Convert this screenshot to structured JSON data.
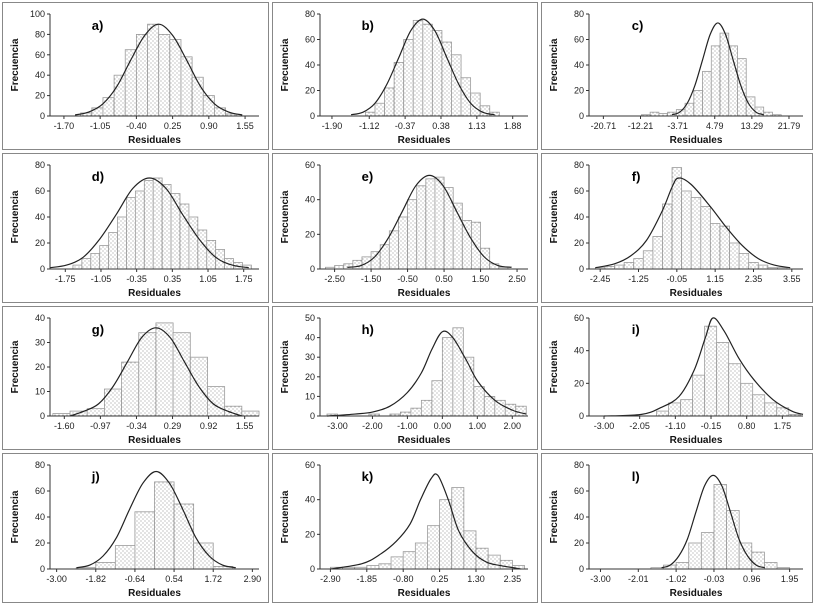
{
  "chart_data": [
    {
      "type": "histogram",
      "label": "a)",
      "xlabel": "Residuales",
      "ylabel": "Frecuencia",
      "bins": [
        -1.4,
        -1.2,
        -1,
        -0.8,
        -0.6,
        -0.4,
        -0.2,
        0,
        0.2,
        0.4,
        0.6,
        0.8,
        1,
        1.2,
        1.4
      ],
      "values": [
        3,
        8,
        18,
        40,
        65,
        80,
        90,
        80,
        75,
        58,
        38,
        20,
        8,
        2
      ],
      "curve": {
        "x": [
          -1.5,
          -1.25,
          -1,
          -0.75,
          -0.5,
          -0.25,
          0,
          0.25,
          0.5,
          0.75,
          1,
          1.25,
          1.5
        ],
        "values": [
          1,
          4,
          12,
          29,
          55,
          79,
          90,
          79,
          55,
          29,
          12,
          4,
          1
        ]
      },
      "xlim": [
        -1.95,
        1.8
      ],
      "ylim": [
        0,
        100
      ],
      "xticks": [
        {
          "value": -1.7,
          "label": "-1.70"
        },
        -1.05,
        {
          "value": -0.4,
          "label": "-0.40"
        },
        0.25,
        {
          "value": 0.9,
          "label": "0.90"
        },
        1.55
      ],
      "yticks": [
        0,
        20,
        40,
        60,
        80,
        100
      ]
    },
    {
      "type": "histogram",
      "label": "b)",
      "xlabel": "Residuales",
      "ylabel": "Frecuencia",
      "bins": [
        -1.2,
        -1,
        -0.8,
        -0.6,
        -0.4,
        -0.2,
        0,
        0.2,
        0.4,
        0.6,
        0.8,
        1,
        1.2,
        1.4,
        1.6
      ],
      "values": [
        3,
        10,
        22,
        42,
        60,
        75,
        72,
        67,
        58,
        48,
        30,
        18,
        8,
        3
      ],
      "curve": {
        "x": [
          -1.5,
          -1.25,
          -1,
          -0.75,
          -0.5,
          -0.25,
          0,
          0.25,
          0.5,
          0.75,
          1,
          1.25,
          1.5
        ],
        "values": [
          1,
          3,
          10,
          25,
          46,
          67,
          76,
          67,
          46,
          25,
          10,
          3,
          1
        ]
      },
      "xlim": [
        -2.15,
        2.2
      ],
      "ylim": [
        0,
        80
      ],
      "xticks": [
        {
          "value": -1.9,
          "label": "-1.90"
        },
        -1.12,
        -0.37,
        0.38,
        1.13,
        1.88
      ],
      "yticks": [
        0,
        20,
        40,
        60,
        80
      ]
    },
    {
      "type": "histogram",
      "label": "c)",
      "xlabel": "Residuales",
      "ylabel": "Frecuencia",
      "bins": [
        -12,
        -10,
        -8,
        -6,
        -4,
        -2,
        0,
        2,
        4,
        6,
        8,
        10,
        12,
        14,
        16,
        18,
        20
      ],
      "values": [
        1,
        3,
        2,
        3,
        5,
        10,
        20,
        35,
        55,
        65,
        55,
        45,
        15,
        7,
        3,
        1
      ],
      "curve": {
        "x": [
          -5,
          -3.25,
          -1.5,
          0.25,
          2,
          3.75,
          5.5,
          7.25,
          9,
          10.75,
          12.5,
          14.25,
          16
        ],
        "values": [
          1,
          3,
          10,
          24,
          44,
          64,
          73,
          64,
          44,
          24,
          10,
          3,
          1
        ]
      },
      "xlim": [
        -24,
        25
      ],
      "ylim": [
        0,
        80
      ],
      "xticks": [
        -20.71,
        -12.21,
        -3.71,
        4.79,
        13.29,
        21.79
      ],
      "yticks": [
        0,
        20,
        40,
        60,
        80
      ]
    },
    {
      "type": "histogram",
      "label": "d)",
      "xlabel": "Residuales",
      "ylabel": "Frecuencia",
      "bins": [
        -1.6,
        -1.425,
        -1.25,
        -1.075,
        -0.9,
        -0.725,
        -0.55,
        -0.375,
        -0.2,
        -0.025,
        0.15,
        0.325,
        0.5,
        0.675,
        0.85,
        1.025,
        1.2,
        1.375,
        1.55,
        1.725,
        1.9
      ],
      "values": [
        3,
        8,
        12,
        18,
        28,
        40,
        55,
        60,
        68,
        70,
        65,
        58,
        50,
        40,
        30,
        22,
        15,
        8,
        5,
        3
      ],
      "curve": {
        "x": [
          -2.05,
          -1.725,
          -1.4,
          -1.075,
          -0.75,
          -0.425,
          -0.1,
          0.225,
          0.55,
          0.875,
          1.2,
          1.525,
          1.85
        ],
        "values": [
          1,
          3,
          9,
          23,
          42,
          62,
          70,
          62,
          42,
          23,
          9,
          3,
          1
        ]
      },
      "xlim": [
        -2.05,
        2.05
      ],
      "ylim": [
        0,
        80
      ],
      "xticks": [
        -1.75,
        -1.05,
        -0.35,
        0.35,
        1.05,
        1.75
      ],
      "yticks": [
        0,
        20,
        40,
        60,
        80
      ]
    },
    {
      "type": "histogram",
      "label": "e)",
      "xlabel": "Residuales",
      "ylabel": "Frecuencia",
      "bins": [
        -2.75,
        -2.5,
        -2.25,
        -2,
        -1.75,
        -1.5,
        -1.25,
        -1,
        -0.75,
        -0.5,
        -0.25,
        0,
        0.25,
        0.5,
        0.75,
        1,
        1.25,
        1.5,
        1.75,
        2,
        2.25
      ],
      "values": [
        1,
        2,
        3,
        5,
        7,
        10,
        14,
        22,
        30,
        40,
        48,
        52,
        53,
        47,
        38,
        28,
        27,
        12,
        3,
        1
      ],
      "curve": {
        "x": [
          -2.15,
          -1.775,
          -1.4,
          -1.025,
          -0.65,
          -0.275,
          0.1,
          0.475,
          0.85,
          1.225,
          1.6,
          1.975,
          2.35
        ],
        "values": [
          1,
          2,
          7,
          18,
          33,
          48,
          54,
          48,
          33,
          18,
          7,
          2,
          1
        ]
      },
      "xlim": [
        -2.9,
        2.8
      ],
      "ylim": [
        0,
        60
      ],
      "xticks": [
        {
          "value": -2.5,
          "label": "-2.50"
        },
        {
          "value": -1.5,
          "label": "-1.50"
        },
        {
          "value": -0.5,
          "label": "-0.50"
        },
        {
          "value": 0.5,
          "label": "0.50"
        },
        {
          "value": 1.5,
          "label": "1.50"
        },
        {
          "value": 2.5,
          "label": "2.50"
        }
      ],
      "yticks": [
        0,
        20,
        40,
        60
      ]
    },
    {
      "type": "histogram",
      "label": "f)",
      "xlabel": "Residuales",
      "ylabel": "Frecuencia",
      "bins": [
        -2.6,
        -2.3,
        -2,
        -1.7,
        -1.4,
        -1.1,
        -0.8,
        -0.5,
        -0.2,
        0.1,
        0.4,
        0.7,
        1,
        1.3,
        1.6,
        1.9,
        2.2,
        2.5,
        2.8,
        3.1,
        3.4
      ],
      "values": [
        1,
        2,
        3,
        5,
        8,
        14,
        25,
        50,
        78,
        60,
        55,
        48,
        35,
        33,
        20,
        12,
        5,
        3,
        1,
        1
      ],
      "curve": {
        "x": [
          -2.6,
          -2,
          -1.5,
          -1,
          -0.5,
          -0.2,
          0,
          0.4,
          1,
          1.5,
          2,
          2.5,
          3,
          3.5
        ],
        "values": [
          1,
          4,
          10,
          22,
          45,
          63,
          70,
          65,
          48,
          32,
          18,
          8,
          3,
          1
        ]
      },
      "xlim": [
        -2.8,
        3.9
      ],
      "ylim": [
        0,
        80
      ],
      "xticks": [
        -2.45,
        -1.25,
        -0.05,
        1.15,
        2.35,
        3.55
      ],
      "yticks": [
        0,
        20,
        40,
        60,
        80
      ]
    },
    {
      "type": "histogram",
      "label": "g)",
      "xlabel": "Residuales",
      "ylabel": "Frecuencia",
      "bins": [
        -1.8,
        -1.5,
        -1.2,
        -0.9,
        -0.6,
        -0.3,
        0,
        0.3,
        0.6,
        0.9,
        1.2,
        1.5,
        1.8
      ],
      "values": [
        1,
        2,
        3,
        11,
        22,
        34,
        38,
        34,
        24,
        12,
        4,
        2
      ],
      "curve": {
        "x": [
          -1.5,
          -1.25,
          -1,
          -0.75,
          -0.5,
          -0.25,
          0,
          0.25,
          0.5,
          0.75,
          1,
          1.25,
          1.5
        ],
        "values": [
          0,
          2,
          5,
          12,
          22,
          32,
          36,
          32,
          22,
          12,
          5,
          2,
          0
        ]
      },
      "xlim": [
        -1.85,
        1.8
      ],
      "ylim": [
        0,
        40
      ],
      "xticks": [
        {
          "value": -1.6,
          "label": "-1.60"
        },
        -0.97,
        -0.34,
        0.29,
        0.92,
        1.55
      ],
      "yticks": [
        0,
        10,
        20,
        30,
        40
      ]
    },
    {
      "type": "histogram",
      "label": "h)",
      "xlabel": "Residuales",
      "ylabel": "Frecuencia",
      "bins": [
        -3.3,
        -3,
        -2.7,
        -2.4,
        -2.1,
        -1.8,
        -1.5,
        -1.2,
        -0.9,
        -0.6,
        -0.3,
        0,
        0.3,
        0.6,
        0.9,
        1.2,
        1.5,
        1.8,
        2.1,
        2.4
      ],
      "values": [
        1,
        0,
        0,
        0,
        1,
        0,
        1,
        2,
        4,
        8,
        18,
        40,
        45,
        30,
        15,
        10,
        8,
        6,
        5
      ],
      "curve": {
        "x": [
          -3.3,
          -2.5,
          -2,
          -1.5,
          -1,
          -0.6,
          -0.3,
          0,
          0.3,
          0.7,
          1,
          1.5,
          2,
          2.4
        ],
        "values": [
          0,
          1,
          2,
          5,
          12,
          22,
          34,
          43,
          40,
          28,
          18,
          8,
          3,
          1
        ]
      },
      "xlim": [
        -3.5,
        2.45
      ],
      "ylim": [
        0,
        50
      ],
      "xticks": [
        {
          "value": -3,
          "label": "-3.00"
        },
        {
          "value": -2,
          "label": "-2.00"
        },
        {
          "value": -1,
          "label": "-1.00"
        },
        {
          "value": 0,
          "label": "0.00"
        },
        {
          "value": 1,
          "label": "1.00"
        },
        {
          "value": 2,
          "label": "2.00"
        }
      ],
      "yticks": [
        0,
        10,
        20,
        30,
        40,
        50
      ]
    },
    {
      "type": "histogram",
      "label": "i)",
      "xlabel": "Residuales",
      "ylabel": "Frecuencia",
      "bins": [
        -1.6,
        -1.28,
        -0.96,
        -0.64,
        -0.32,
        0,
        0.32,
        0.64,
        0.96,
        1.28,
        1.6,
        1.92,
        2.24
      ],
      "values": [
        3,
        8,
        10,
        25,
        55,
        45,
        32,
        20,
        13,
        8,
        5,
        1
      ],
      "curve": {
        "x": [
          -3,
          -2,
          -1.5,
          -1,
          -0.6,
          -0.3,
          -0.1,
          0.2,
          0.6,
          1,
          1.5,
          2,
          2.3
        ],
        "values": [
          0,
          1,
          5,
          12,
          28,
          48,
          60,
          52,
          35,
          22,
          10,
          3,
          1
        ]
      },
      "xlim": [
        -3.4,
        2.3
      ],
      "ylim": [
        0,
        60
      ],
      "xticks": [
        {
          "value": -3,
          "label": "-3.00"
        },
        -2.05,
        {
          "value": -1.1,
          "label": "-1.10"
        },
        -0.15,
        {
          "value": 0.8,
          "label": "0.80"
        },
        1.75
      ],
      "yticks": [
        0,
        20,
        40,
        60
      ]
    },
    {
      "type": "histogram",
      "label": "j)",
      "xlabel": "Residuales",
      "ylabel": "Frecuencia",
      "bins": [
        -2.41,
        -1.82,
        -1.23,
        -0.64,
        -0.05,
        0.54,
        1.13,
        1.72,
        2.31
      ],
      "values": [
        1,
        5,
        18,
        44,
        67,
        50,
        20,
        2
      ],
      "curve": {
        "x": [
          -2.4,
          -2,
          -1.6,
          -1.2,
          -0.8,
          -0.4,
          0,
          0.4,
          0.8,
          1.2,
          1.6,
          2,
          2.4
        ],
        "values": [
          1,
          3,
          10,
          24,
          46,
          66,
          75,
          66,
          46,
          24,
          10,
          3,
          1
        ]
      },
      "xlim": [
        -3.2,
        3.1
      ],
      "ylim": [
        0,
        80
      ],
      "xticks": [
        {
          "value": -3,
          "label": "-3.00"
        },
        -1.82,
        -0.64,
        0.54,
        1.72,
        {
          "value": 2.9,
          "label": "2.90"
        }
      ],
      "yticks": [
        0,
        20,
        40,
        60,
        80
      ]
    },
    {
      "type": "histogram",
      "label": "k)",
      "xlabel": "Residuales",
      "ylabel": "Frecuencia",
      "bins": [
        -2.9,
        -2.55,
        -2.2,
        -1.85,
        -1.5,
        -1.15,
        -0.8,
        -0.45,
        -0.1,
        0.25,
        0.6,
        0.95,
        1.3,
        1.65,
        2,
        2.35,
        2.7
      ],
      "values": [
        1,
        1,
        1,
        2,
        3,
        7,
        10,
        15,
        25,
        40,
        47,
        22,
        12,
        8,
        5,
        2
      ],
      "curve": {
        "x": [
          -2.9,
          -2,
          -1.5,
          -1,
          -0.6,
          -0.3,
          0,
          0.2,
          0.5,
          0.8,
          1.2,
          1.6,
          2,
          2.6
        ],
        "values": [
          0,
          3,
          8,
          16,
          26,
          40,
          52,
          54,
          40,
          22,
          10,
          4,
          2,
          0
        ]
      },
      "xlim": [
        -3.2,
        2.8
      ],
      "ylim": [
        0,
        60
      ],
      "xticks": [
        {
          "value": -2.9,
          "label": "-2.90"
        },
        -1.85,
        {
          "value": -0.8,
          "label": "-0.80"
        },
        0.25,
        {
          "value": 1.3,
          "label": "1.30"
        },
        2.35
      ],
      "yticks": [
        0,
        20,
        40,
        60
      ]
    },
    {
      "type": "histogram",
      "label": "l)",
      "xlabel": "Residuales",
      "ylabel": "Frecuencia",
      "bins": [
        -1.68,
        -1.35,
        -1.02,
        -0.69,
        -0.36,
        -0.03,
        0.3,
        0.63,
        0.96,
        1.29,
        1.62,
        1.95
      ],
      "values": [
        1,
        3,
        5,
        20,
        28,
        65,
        45,
        20,
        13,
        5,
        1
      ],
      "curve": {
        "x": [
          -1.4,
          -1.175,
          -0.95,
          -0.725,
          -0.5,
          -0.275,
          -0.05,
          0.175,
          0.4,
          0.625,
          0.85,
          1.075,
          1.3
        ],
        "values": [
          1,
          3,
          10,
          23,
          44,
          64,
          72,
          64,
          44,
          23,
          10,
          3,
          1
        ]
      },
      "xlim": [
        -3.3,
        2.3
      ],
      "ylim": [
        0,
        80
      ],
      "xticks": [
        {
          "value": -3,
          "label": "-3.00"
        },
        -2.01,
        -1.02,
        -0.03,
        0.96,
        1.95
      ],
      "yticks": [
        0,
        20,
        40,
        60,
        80
      ]
    }
  ]
}
